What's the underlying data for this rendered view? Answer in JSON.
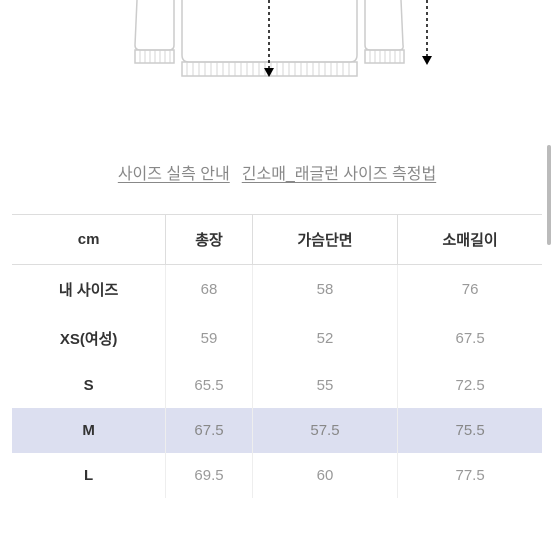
{
  "links": {
    "measurement_guide": "사이즈 실측 안내",
    "raglan_method": "긴소매_래글런 사이즈 측정법"
  },
  "table": {
    "unit_header": "cm",
    "columns": [
      "총장",
      "가슴단면",
      "소매길이"
    ],
    "rows": [
      {
        "label": "내 사이즈",
        "values": [
          "68",
          "58",
          "76"
        ],
        "highlighted": false
      },
      {
        "label": "XS(여성)",
        "values": [
          "59",
          "52",
          "67.5"
        ],
        "highlighted": false
      },
      {
        "label": "S",
        "values": [
          "65.5",
          "55",
          "72.5"
        ],
        "highlighted": false
      },
      {
        "label": "M",
        "values": [
          "67.5",
          "57.5",
          "75.5"
        ],
        "highlighted": true
      },
      {
        "label": "L",
        "values": [
          "69.5",
          "60",
          "77.5"
        ],
        "highlighted": false
      }
    ]
  },
  "colors": {
    "highlight_bg": "#dcdff0",
    "border": "#ddd",
    "text_primary": "#333",
    "text_secondary": "#999",
    "link": "#888"
  }
}
